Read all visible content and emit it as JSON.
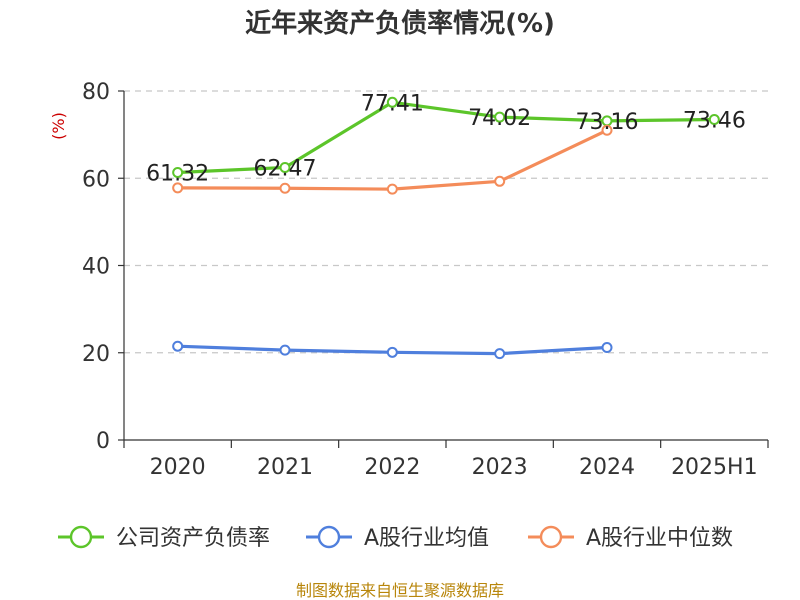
{
  "chart_data": {
    "type": "line",
    "title": "近年来资产负债率情况(%)",
    "ylabel": "(%)",
    "categories": [
      "2020",
      "2021",
      "2022",
      "2023",
      "2024",
      "2025H1"
    ],
    "ylim": [
      0,
      80
    ],
    "yticks": [
      0,
      20,
      40,
      60,
      80
    ],
    "grid": true,
    "legend_position": "bottom",
    "series": [
      {
        "name": "公司资产负债率",
        "color": "#5cc52a",
        "values": [
          61.32,
          62.47,
          77.41,
          74.02,
          73.16,
          73.46
        ],
        "labels": [
          "61.32",
          "62.47",
          "77.41",
          "74.02",
          "73.16",
          "73.46"
        ]
      },
      {
        "name": "A股行业均值",
        "color": "#4f7fdd",
        "values": [
          21.5,
          20.6,
          20.1,
          19.8,
          21.2,
          null
        ]
      },
      {
        "name": "A股行业中位数",
        "color": "#f48c5a",
        "values": [
          57.8,
          57.7,
          57.5,
          59.3,
          71.0,
          null
        ]
      }
    ]
  },
  "source": "制图数据来自恒生聚源数据库"
}
